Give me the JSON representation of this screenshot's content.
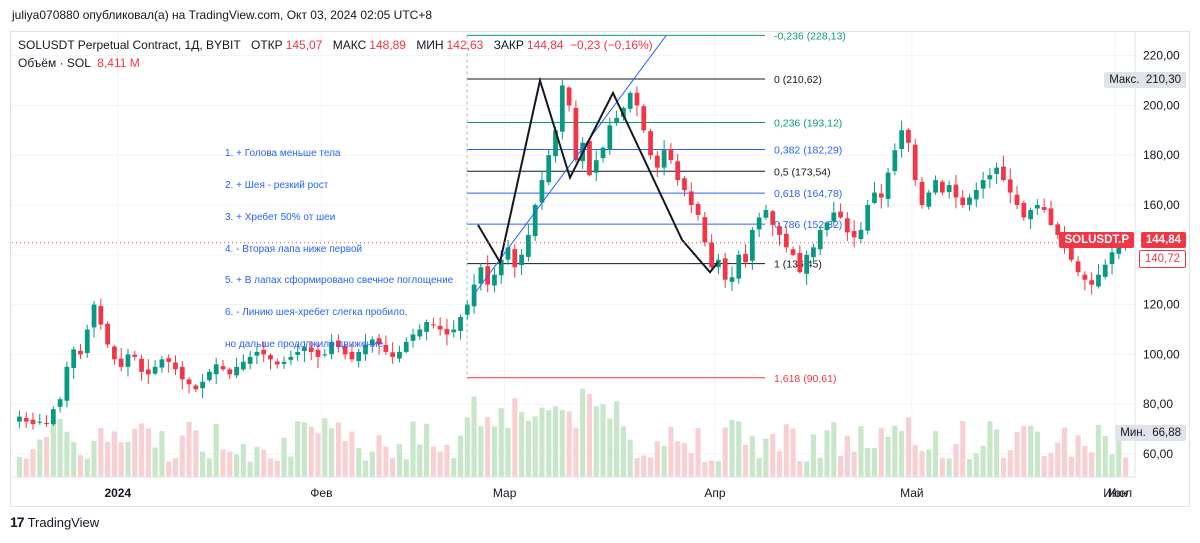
{
  "header": {
    "credit": "juliya070880 опубликовал(а) на TradingView.com, Окт 03, 2024 02:05 UTC+8"
  },
  "legend": {
    "symbol": "SOLUSDT Perpetual Contract, 1Д, BYBIT",
    "open_label": "ОТКР",
    "open_value": "145,07",
    "high_label": "МАКС",
    "high_value": "148,89",
    "low_label": "МИН",
    "low_value": "142,63",
    "close_label": "ЗАКР",
    "close_value": "144,84",
    "change_value": "−0,23 (−0,16%)",
    "volume_label": "Объём · SOL",
    "volume_value": "8,411 M"
  },
  "price_axis": {
    "ticks": [
      "220,00",
      "200,00",
      "180,00",
      "160,00",
      "140,00",
      "120,00",
      "100,00",
      "80,00",
      "60,00"
    ],
    "max_label": "Макс.",
    "max_value": "210,30",
    "min_label": "Мин.",
    "min_value": "66,88",
    "symbol_tag": "SOLUSDT.P",
    "last_price": "144,84",
    "secondary_price": "140,72"
  },
  "time_axis": {
    "labels": [
      "2024",
      "Фев",
      "Мар",
      "Апр",
      "Май",
      "Июн",
      "Июл"
    ]
  },
  "fib_levels": [
    {
      "label": "-0,236 (228,13)",
      "price": 228.13,
      "color": "#089981"
    },
    {
      "label": "0 (210,62)",
      "price": 210.62,
      "color": "#131722"
    },
    {
      "label": "0,236 (193,12)",
      "price": 193.12,
      "color": "#089981"
    },
    {
      "label": "0,382 (182,29)",
      "price": 182.29,
      "color": "#2962ff"
    },
    {
      "label": "0,5 (173,54)",
      "price": 173.54,
      "color": "#131722"
    },
    {
      "label": "0,618 (164,78)",
      "price": 164.78,
      "color": "#2962ff"
    },
    {
      "label": "0,786 (152,32)",
      "price": 152.32,
      "color": "#2962ff"
    },
    {
      "label": "1 (136,45)",
      "price": 136.45,
      "color": "#131722"
    },
    {
      "label": "1,618 (90,61)",
      "price": 90.61,
      "color": "#f23645"
    }
  ],
  "notes": [
    "1. + Голова меньше тела",
    "2. + Шея - резкий рост",
    "3. + Хребет 50% от шеи",
    "4. - Вторая лапа ниже первой",
    "5. + В лапах сформировано свечное поглощение",
    "6. - Линию шея-хребет слегка пробило,",
    "но дальше продолжило движение"
  ],
  "colors": {
    "up": "#089981",
    "down": "#f23645",
    "up_volume": "#c8e6c9",
    "down_volume": "#f8d0d4",
    "trend": "#2962ff",
    "pattern": "#131722"
  },
  "chart_data": {
    "type": "candlestick",
    "title": "SOLUSDT Perpetual Contract, 1Д, BYBIT",
    "y_range": [
      55,
      228
    ],
    "x_labels": [
      "2024",
      "Фев",
      "Мар",
      "Апр",
      "Май",
      "Июн",
      "Июл"
    ],
    "last": {
      "open": 145.07,
      "high": 148.89,
      "low": 142.63,
      "close": 144.84
    },
    "range_max": 210.3,
    "range_min": 66.88,
    "closes": [
      75,
      73,
      72,
      73,
      72,
      78,
      82,
      95,
      102,
      100,
      110,
      120,
      112,
      104,
      98,
      95,
      100,
      99,
      93,
      92,
      95,
      98,
      97,
      94,
      90,
      88,
      86,
      89,
      93,
      96,
      94,
      92,
      95,
      97,
      99,
      101,
      100,
      98,
      96,
      97,
      99,
      101,
      103,
      101,
      99,
      100,
      105,
      103,
      100,
      98,
      101,
      104,
      106,
      104,
      101,
      99,
      101,
      105,
      108,
      110,
      113,
      112,
      110,
      108,
      110,
      115,
      120,
      128,
      135,
      128,
      132,
      138,
      143,
      135,
      140,
      148,
      160,
      170,
      180,
      190,
      208,
      200,
      178,
      185,
      172,
      178,
      183,
      192,
      195,
      199,
      205,
      200,
      190,
      180,
      175,
      182,
      178,
      170,
      166,
      160,
      156,
      145,
      135,
      138,
      130,
      131,
      140,
      137,
      150,
      155,
      158,
      152,
      148,
      143,
      140,
      133,
      140,
      143,
      150,
      153,
      157,
      155,
      149,
      147,
      150,
      160,
      165,
      163,
      173,
      182,
      190,
      185,
      170,
      160,
      165,
      170,
      165,
      168,
      163,
      160,
      163,
      166,
      170,
      172,
      175,
      170,
      165,
      160,
      155,
      158,
      160,
      158,
      152,
      148,
      143,
      138,
      133,
      130,
      128,
      132,
      136,
      141,
      145,
      144.84
    ]
  }
}
